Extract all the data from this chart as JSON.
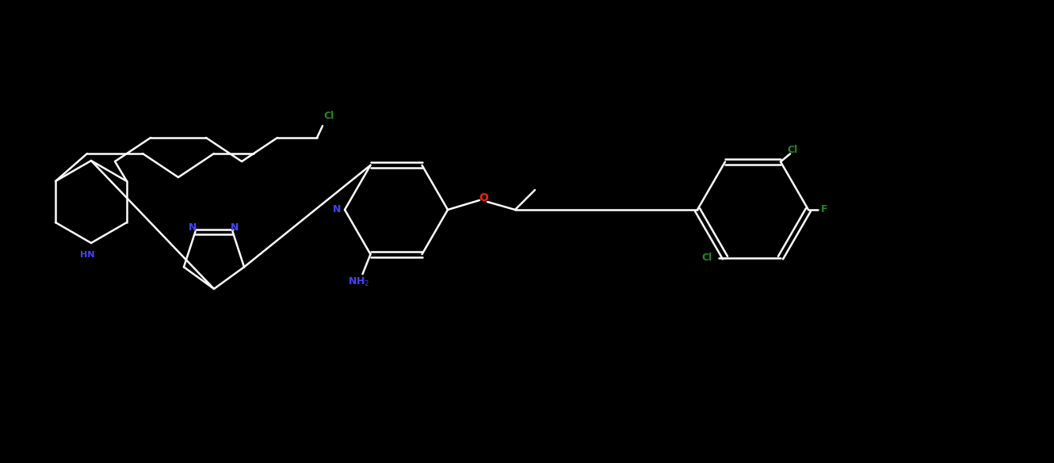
{
  "background_color": "#000000",
  "bond_color": "#ffffff",
  "atom_colors": {
    "N": "#4444ff",
    "O": "#ff2200",
    "F": "#228B22",
    "Cl": "#228B22",
    "HN": "#4444ff",
    "NH2": "#4444ff",
    "C": "#ffffff"
  },
  "figsize": [
    13.3,
    5.85
  ],
  "dpi": 100
}
